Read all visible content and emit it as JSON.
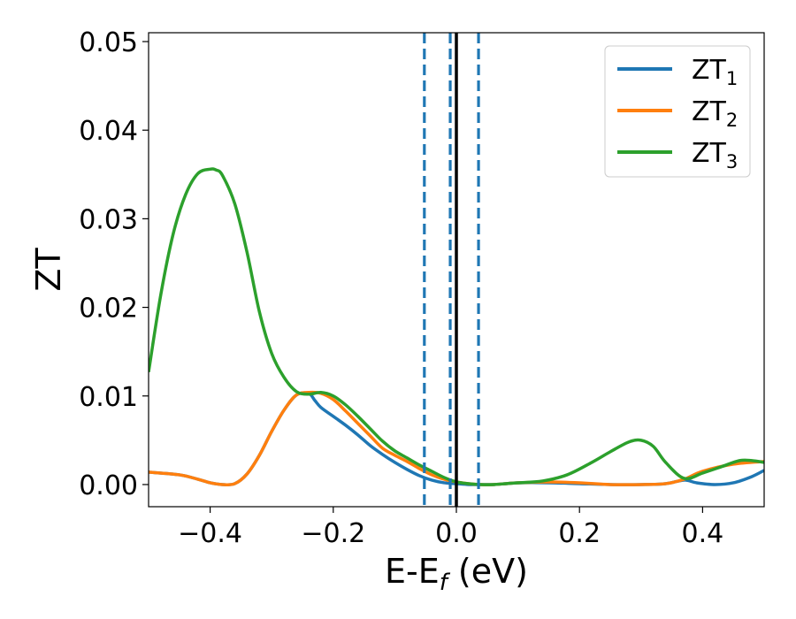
{
  "chart_data": {
    "type": "line",
    "xlabel": "E-E",
    "xlabel_sub": "f",
    "xlabel_unit": "(eV)",
    "ylabel": "ZT",
    "xlim": [
      -0.5,
      0.5
    ],
    "ylim": [
      -0.0025,
      0.051
    ],
    "xticks": [
      -0.4,
      -0.2,
      0.0,
      0.2,
      0.4
    ],
    "xtick_labels": [
      "−0.4",
      "−0.2",
      "0.0",
      "0.2",
      "0.4"
    ],
    "yticks": [
      0.0,
      0.01,
      0.02,
      0.03,
      0.04,
      0.05
    ],
    "ytick_labels": [
      "0.00",
      "0.01",
      "0.02",
      "0.03",
      "0.04",
      "0.05"
    ],
    "grid": false,
    "legend_position": "top-right",
    "vlines": [
      {
        "x": 0.0,
        "color": "#000000",
        "style": "solid"
      },
      {
        "x": -0.052,
        "color": "#1f77b4",
        "style": "dashed"
      },
      {
        "x": -0.01,
        "color": "#1f77b4",
        "style": "dashed"
      },
      {
        "x": 0.036,
        "color": "#1f77b4",
        "style": "dashed"
      }
    ],
    "series": [
      {
        "name": "ZT",
        "name_sub": "1",
        "color": "#1f77b4",
        "x": [
          -0.5,
          -0.45,
          -0.42,
          -0.4,
          -0.38,
          -0.36,
          -0.34,
          -0.32,
          -0.3,
          -0.28,
          -0.26,
          -0.24,
          -0.23,
          -0.22,
          -0.2,
          -0.18,
          -0.16,
          -0.14,
          -0.12,
          -0.1,
          -0.08,
          -0.06,
          -0.04,
          -0.02,
          0.0,
          0.02,
          0.04,
          0.06,
          0.08,
          0.1,
          0.15,
          0.2,
          0.25,
          0.3,
          0.34,
          0.37,
          0.39,
          0.42,
          0.45,
          0.48,
          0.5
        ],
        "y": [
          0.0014,
          0.0011,
          0.0006,
          0.0002,
          0.0,
          0.0001,
          0.0012,
          0.0033,
          0.006,
          0.0084,
          0.0101,
          0.0103,
          0.0095,
          0.0087,
          0.0077,
          0.0067,
          0.0056,
          0.0044,
          0.0034,
          0.0025,
          0.0017,
          0.001,
          0.0005,
          0.0002,
          0.0001,
          0.0,
          0.0,
          0.0,
          0.0001,
          0.0002,
          0.0002,
          0.0001,
          0.0,
          0.0,
          0.0001,
          0.0005,
          0.0002,
          0.0,
          0.0002,
          0.0009,
          0.0016
        ]
      },
      {
        "name": "ZT",
        "name_sub": "2",
        "color": "#ff7f0e",
        "x": [
          -0.5,
          -0.45,
          -0.42,
          -0.4,
          -0.38,
          -0.36,
          -0.34,
          -0.32,
          -0.3,
          -0.28,
          -0.26,
          -0.24,
          -0.22,
          -0.2,
          -0.18,
          -0.16,
          -0.14,
          -0.12,
          -0.1,
          -0.08,
          -0.06,
          -0.04,
          -0.02,
          0.0,
          0.02,
          0.04,
          0.06,
          0.08,
          0.1,
          0.15,
          0.2,
          0.25,
          0.3,
          0.34,
          0.37,
          0.4,
          0.45,
          0.5
        ],
        "y": [
          0.0014,
          0.0011,
          0.0006,
          0.0002,
          0.0,
          0.0001,
          0.0012,
          0.0033,
          0.006,
          0.0084,
          0.0101,
          0.0104,
          0.0103,
          0.0096,
          0.0083,
          0.0069,
          0.0055,
          0.0041,
          0.0033,
          0.0026,
          0.0018,
          0.0011,
          0.0006,
          0.0003,
          0.0001,
          0.0,
          0.0,
          0.0001,
          0.0002,
          0.0003,
          0.0002,
          0.0,
          0.0,
          0.0001,
          0.0006,
          0.0015,
          0.0023,
          0.0026
        ]
      },
      {
        "name": "ZT",
        "name_sub": "3",
        "color": "#2ca02c",
        "x": [
          -0.5,
          -0.48,
          -0.46,
          -0.44,
          -0.42,
          -0.4,
          -0.39,
          -0.38,
          -0.36,
          -0.34,
          -0.32,
          -0.3,
          -0.28,
          -0.26,
          -0.24,
          -0.22,
          -0.2,
          -0.18,
          -0.16,
          -0.14,
          -0.12,
          -0.1,
          -0.08,
          -0.06,
          -0.04,
          -0.02,
          0.0,
          0.02,
          0.04,
          0.06,
          0.08,
          0.1,
          0.14,
          0.18,
          0.22,
          0.25,
          0.28,
          0.3,
          0.32,
          0.34,
          0.37,
          0.4,
          0.43,
          0.46,
          0.48,
          0.5
        ],
        "y": [
          0.0127,
          0.0215,
          0.0283,
          0.0327,
          0.0351,
          0.0356,
          0.0355,
          0.0349,
          0.0317,
          0.0262,
          0.0195,
          0.0148,
          0.0121,
          0.0105,
          0.0102,
          0.0104,
          0.01,
          0.009,
          0.0077,
          0.0063,
          0.0049,
          0.0038,
          0.003,
          0.0022,
          0.0015,
          0.0008,
          0.0003,
          0.0001,
          0.0,
          0.0,
          0.0001,
          0.0002,
          0.0004,
          0.0011,
          0.0025,
          0.0037,
          0.0048,
          0.005,
          0.0043,
          0.0025,
          0.0007,
          0.0013,
          0.002,
          0.0027,
          0.0027,
          0.0025
        ]
      }
    ]
  }
}
